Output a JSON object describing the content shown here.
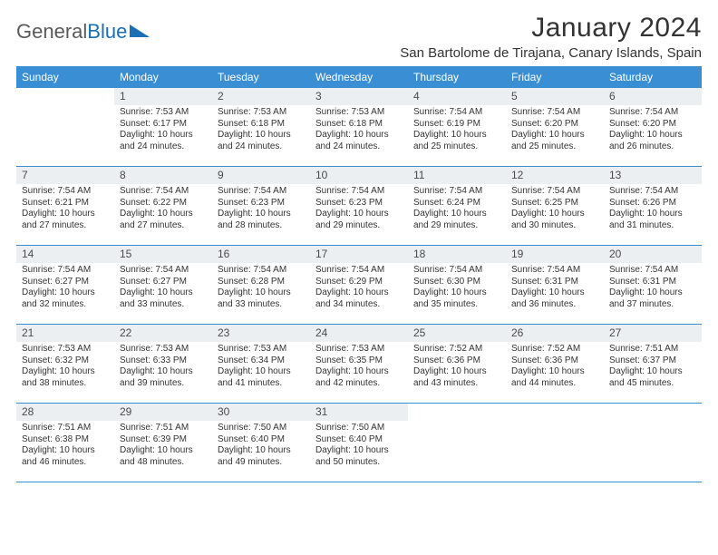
{
  "logo": {
    "text1": "General",
    "text2": "Blue"
  },
  "title": "January 2024",
  "location": "San Bartolome de Tirajana, Canary Islands, Spain",
  "colors": {
    "header_bg": "#3a8fd4",
    "header_text": "#ffffff",
    "daynum_bg": "#eceff1",
    "logo_gray": "#5a5a5a",
    "logo_blue": "#1a6fb5",
    "text": "#333333",
    "rule": "#3a8fd4"
  },
  "days_of_week": [
    "Sunday",
    "Monday",
    "Tuesday",
    "Wednesday",
    "Thursday",
    "Friday",
    "Saturday"
  ],
  "weeks": [
    [
      {
        "num": "",
        "lines": []
      },
      {
        "num": "1",
        "lines": [
          "Sunrise: 7:53 AM",
          "Sunset: 6:17 PM",
          "Daylight: 10 hours",
          "and 24 minutes."
        ]
      },
      {
        "num": "2",
        "lines": [
          "Sunrise: 7:53 AM",
          "Sunset: 6:18 PM",
          "Daylight: 10 hours",
          "and 24 minutes."
        ]
      },
      {
        "num": "3",
        "lines": [
          "Sunrise: 7:53 AM",
          "Sunset: 6:18 PM",
          "Daylight: 10 hours",
          "and 24 minutes."
        ]
      },
      {
        "num": "4",
        "lines": [
          "Sunrise: 7:54 AM",
          "Sunset: 6:19 PM",
          "Daylight: 10 hours",
          "and 25 minutes."
        ]
      },
      {
        "num": "5",
        "lines": [
          "Sunrise: 7:54 AM",
          "Sunset: 6:20 PM",
          "Daylight: 10 hours",
          "and 25 minutes."
        ]
      },
      {
        "num": "6",
        "lines": [
          "Sunrise: 7:54 AM",
          "Sunset: 6:20 PM",
          "Daylight: 10 hours",
          "and 26 minutes."
        ]
      }
    ],
    [
      {
        "num": "7",
        "lines": [
          "Sunrise: 7:54 AM",
          "Sunset: 6:21 PM",
          "Daylight: 10 hours",
          "and 27 minutes."
        ]
      },
      {
        "num": "8",
        "lines": [
          "Sunrise: 7:54 AM",
          "Sunset: 6:22 PM",
          "Daylight: 10 hours",
          "and 27 minutes."
        ]
      },
      {
        "num": "9",
        "lines": [
          "Sunrise: 7:54 AM",
          "Sunset: 6:23 PM",
          "Daylight: 10 hours",
          "and 28 minutes."
        ]
      },
      {
        "num": "10",
        "lines": [
          "Sunrise: 7:54 AM",
          "Sunset: 6:23 PM",
          "Daylight: 10 hours",
          "and 29 minutes."
        ]
      },
      {
        "num": "11",
        "lines": [
          "Sunrise: 7:54 AM",
          "Sunset: 6:24 PM",
          "Daylight: 10 hours",
          "and 29 minutes."
        ]
      },
      {
        "num": "12",
        "lines": [
          "Sunrise: 7:54 AM",
          "Sunset: 6:25 PM",
          "Daylight: 10 hours",
          "and 30 minutes."
        ]
      },
      {
        "num": "13",
        "lines": [
          "Sunrise: 7:54 AM",
          "Sunset: 6:26 PM",
          "Daylight: 10 hours",
          "and 31 minutes."
        ]
      }
    ],
    [
      {
        "num": "14",
        "lines": [
          "Sunrise: 7:54 AM",
          "Sunset: 6:27 PM",
          "Daylight: 10 hours",
          "and 32 minutes."
        ]
      },
      {
        "num": "15",
        "lines": [
          "Sunrise: 7:54 AM",
          "Sunset: 6:27 PM",
          "Daylight: 10 hours",
          "and 33 minutes."
        ]
      },
      {
        "num": "16",
        "lines": [
          "Sunrise: 7:54 AM",
          "Sunset: 6:28 PM",
          "Daylight: 10 hours",
          "and 33 minutes."
        ]
      },
      {
        "num": "17",
        "lines": [
          "Sunrise: 7:54 AM",
          "Sunset: 6:29 PM",
          "Daylight: 10 hours",
          "and 34 minutes."
        ]
      },
      {
        "num": "18",
        "lines": [
          "Sunrise: 7:54 AM",
          "Sunset: 6:30 PM",
          "Daylight: 10 hours",
          "and 35 minutes."
        ]
      },
      {
        "num": "19",
        "lines": [
          "Sunrise: 7:54 AM",
          "Sunset: 6:31 PM",
          "Daylight: 10 hours",
          "and 36 minutes."
        ]
      },
      {
        "num": "20",
        "lines": [
          "Sunrise: 7:54 AM",
          "Sunset: 6:31 PM",
          "Daylight: 10 hours",
          "and 37 minutes."
        ]
      }
    ],
    [
      {
        "num": "21",
        "lines": [
          "Sunrise: 7:53 AM",
          "Sunset: 6:32 PM",
          "Daylight: 10 hours",
          "and 38 minutes."
        ]
      },
      {
        "num": "22",
        "lines": [
          "Sunrise: 7:53 AM",
          "Sunset: 6:33 PM",
          "Daylight: 10 hours",
          "and 39 minutes."
        ]
      },
      {
        "num": "23",
        "lines": [
          "Sunrise: 7:53 AM",
          "Sunset: 6:34 PM",
          "Daylight: 10 hours",
          "and 41 minutes."
        ]
      },
      {
        "num": "24",
        "lines": [
          "Sunrise: 7:53 AM",
          "Sunset: 6:35 PM",
          "Daylight: 10 hours",
          "and 42 minutes."
        ]
      },
      {
        "num": "25",
        "lines": [
          "Sunrise: 7:52 AM",
          "Sunset: 6:36 PM",
          "Daylight: 10 hours",
          "and 43 minutes."
        ]
      },
      {
        "num": "26",
        "lines": [
          "Sunrise: 7:52 AM",
          "Sunset: 6:36 PM",
          "Daylight: 10 hours",
          "and 44 minutes."
        ]
      },
      {
        "num": "27",
        "lines": [
          "Sunrise: 7:51 AM",
          "Sunset: 6:37 PM",
          "Daylight: 10 hours",
          "and 45 minutes."
        ]
      }
    ],
    [
      {
        "num": "28",
        "lines": [
          "Sunrise: 7:51 AM",
          "Sunset: 6:38 PM",
          "Daylight: 10 hours",
          "and 46 minutes."
        ]
      },
      {
        "num": "29",
        "lines": [
          "Sunrise: 7:51 AM",
          "Sunset: 6:39 PM",
          "Daylight: 10 hours",
          "and 48 minutes."
        ]
      },
      {
        "num": "30",
        "lines": [
          "Sunrise: 7:50 AM",
          "Sunset: 6:40 PM",
          "Daylight: 10 hours",
          "and 49 minutes."
        ]
      },
      {
        "num": "31",
        "lines": [
          "Sunrise: 7:50 AM",
          "Sunset: 6:40 PM",
          "Daylight: 10 hours",
          "and 50 minutes."
        ]
      },
      {
        "num": "",
        "lines": []
      },
      {
        "num": "",
        "lines": []
      },
      {
        "num": "",
        "lines": []
      }
    ]
  ]
}
